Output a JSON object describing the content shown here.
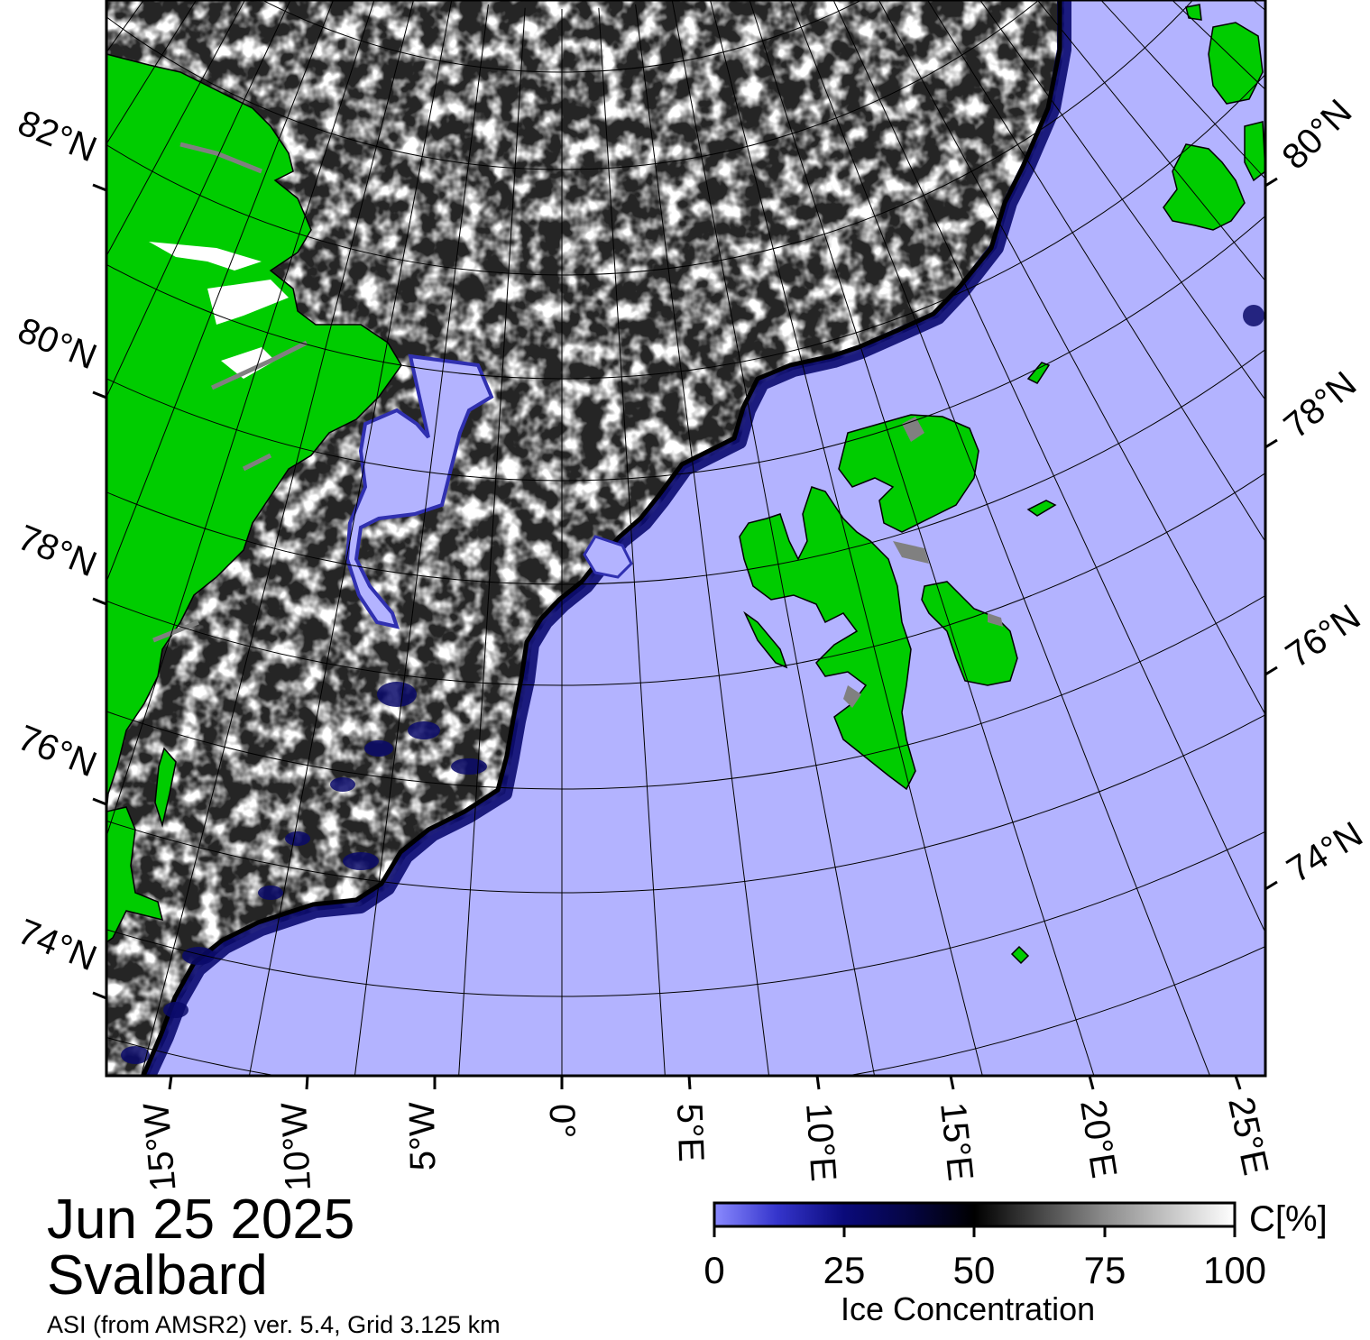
{
  "map": {
    "date": "Jun 25 2025",
    "region": "Svalbard",
    "source": "ASI (from AMSR2) ver. 5.4,  Grid 3.125 km",
    "left_lat_labels": [
      "82°N",
      "80°N",
      "78°N",
      "76°N",
      "74°N"
    ],
    "right_lat_labels": [
      "80°N",
      "78°N",
      "76°N",
      "74°N"
    ],
    "lon_labels": [
      "15°W",
      "10°W",
      "5°W",
      "0°",
      "5°E",
      "10°E",
      "15°E",
      "20°E",
      "25°E"
    ],
    "legend": {
      "title": "Ice Concentration",
      "unit": "C[%]",
      "ticks": [
        "0",
        "25",
        "50",
        "75",
        "100"
      ]
    },
    "colors": {
      "open_water": "#b3b3ff",
      "land": "#00cc00",
      "coast_ice": "#808080",
      "ice_full": "#ffffff",
      "ice_mid": "#000000",
      "ice_low": "#0a0a7a",
      "ice_min": "#8080ff"
    }
  }
}
